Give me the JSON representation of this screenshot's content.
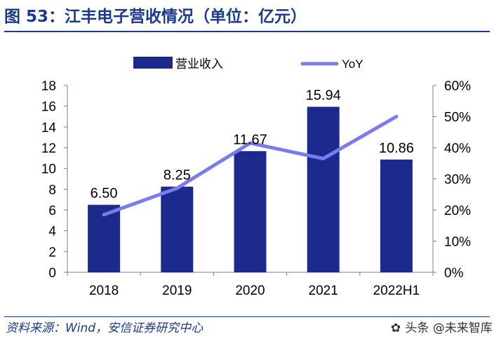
{
  "header": {
    "title": "图 53：江丰电子营收情况（单位：亿元）"
  },
  "footer": {
    "source": "资料来源：Wind，安信证券研究中心",
    "watermark": "头条 @未来智库"
  },
  "colors": {
    "title": "#1b3a8a",
    "bar": "#1b2a8c",
    "line": "#7b7bf0"
  },
  "chart_data": {
    "type": "bar",
    "title": "江丰电子营收情况（单位：亿元）",
    "categories": [
      "2018",
      "2019",
      "2020",
      "2021",
      "2022H1"
    ],
    "series": [
      {
        "name": "营业收入",
        "type": "bar",
        "axis": "left",
        "values": [
          6.5,
          8.25,
          11.67,
          15.94,
          10.86
        ],
        "labels": [
          "6.50",
          "8.25",
          "11.67",
          "15.94",
          "10.86"
        ]
      },
      {
        "name": "YoY",
        "type": "line",
        "axis": "right",
        "values": [
          18.5,
          27,
          41.5,
          36.5,
          50
        ]
      }
    ],
    "y_left": {
      "lim": [
        0,
        18
      ],
      "ticks": [
        0,
        2,
        4,
        6,
        8,
        10,
        12,
        14,
        16,
        18
      ],
      "tick_labels": [
        "0",
        "2",
        "4",
        "6",
        "8",
        "10",
        "12",
        "14",
        "16",
        "18"
      ]
    },
    "y_right": {
      "lim": [
        0,
        60
      ],
      "ticks": [
        0,
        10,
        20,
        30,
        40,
        50,
        60
      ],
      "tick_labels": [
        "0%",
        "10%",
        "20%",
        "30%",
        "40%",
        "50%",
        "60%"
      ]
    },
    "legend": {
      "position": "top-center",
      "items": [
        "营业收入",
        "YoY"
      ]
    },
    "grid": false
  }
}
